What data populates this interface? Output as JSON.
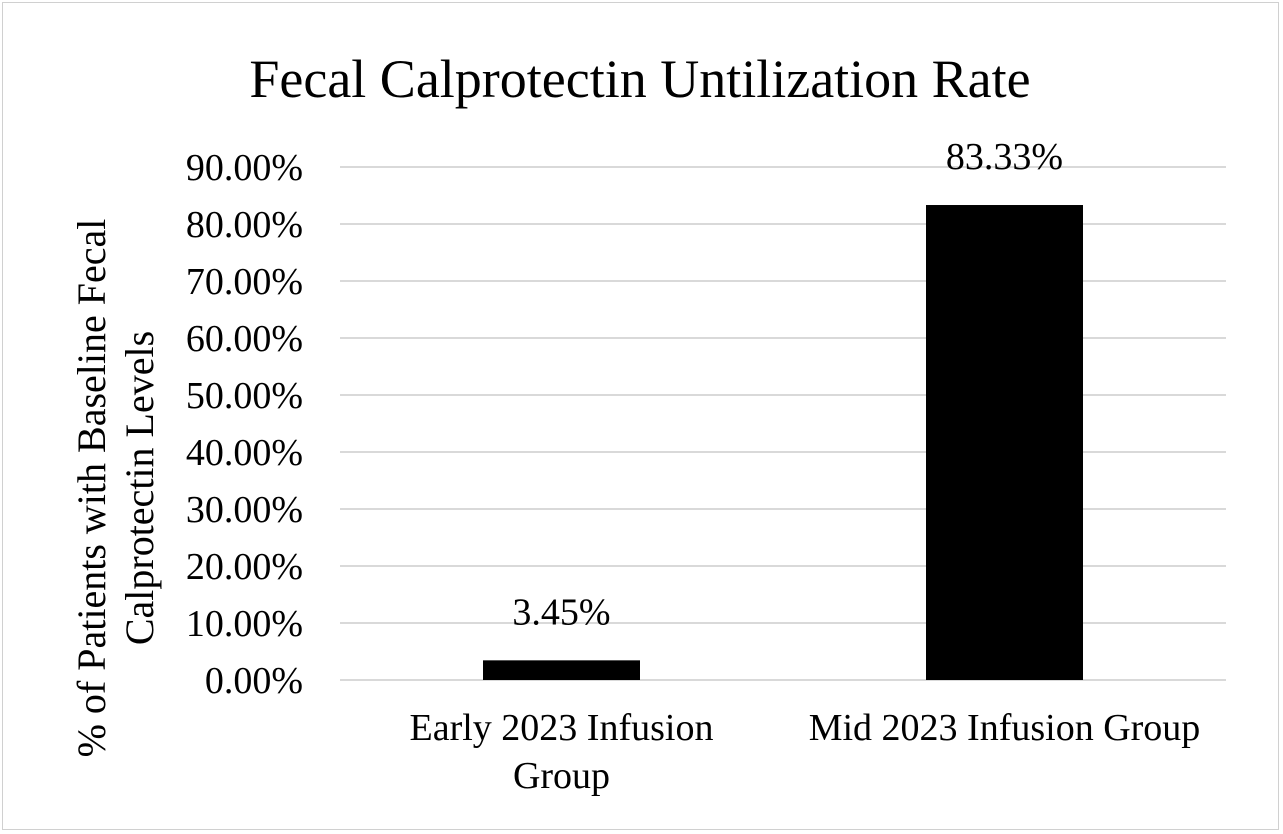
{
  "chart_data": {
    "type": "bar",
    "title": "Fecal Calprotectin Untilization Rate",
    "xlabel": "",
    "ylabel_lines": [
      "% of Patients with Baseline Fecal",
      "Calprotectin Levels"
    ],
    "categories": [
      [
        "Early 2023 Infusion",
        "Group"
      ],
      [
        "Mid 2023 Infusion Group"
      ]
    ],
    "values": [
      3.45,
      83.33
    ],
    "value_labels": [
      "3.45%",
      "83.33%"
    ],
    "ylim": [
      0,
      90
    ],
    "yticks": [
      0,
      10,
      20,
      30,
      40,
      50,
      60,
      70,
      80,
      90
    ],
    "ytick_labels": [
      "0.00%",
      "10.00%",
      "20.00%",
      "30.00%",
      "40.00%",
      "50.00%",
      "60.00%",
      "70.00%",
      "80.00%",
      "90.00%"
    ],
    "grid": true,
    "bar_color": "#000000",
    "grid_color": "#d9d9d9"
  }
}
